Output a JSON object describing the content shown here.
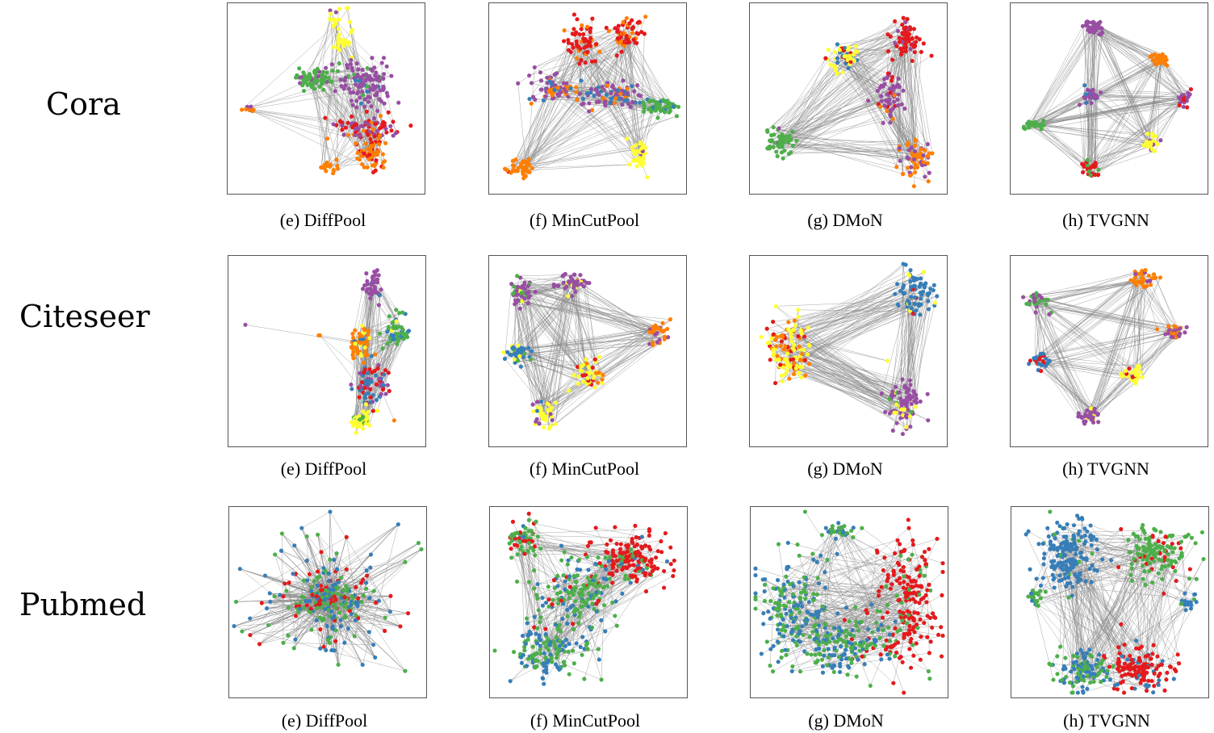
{
  "colors": {
    "edge": "#888888",
    "red": "#e41a1c",
    "blue": "#377eb8",
    "green": "#4daf4a",
    "purple": "#984ea3",
    "orange": "#ff7f00",
    "yellow": "#ffff33"
  },
  "rows": [
    {
      "label": "Cora",
      "panels": [
        {
          "caption": "(e) DiffPool"
        },
        {
          "caption": "(f) MinCutPool"
        },
        {
          "caption": "(g) DMoN"
        },
        {
          "caption": "(h) TVGNN"
        }
      ]
    },
    {
      "label": "Citeseer",
      "panels": [
        {
          "caption": "(e) DiffPool"
        },
        {
          "caption": "(f) MinCutPool"
        },
        {
          "caption": "(g) DMoN"
        },
        {
          "caption": "(h) TVGNN"
        }
      ]
    },
    {
      "label": "Pubmed",
      "panels": [
        {
          "caption": "(e) DiffPool"
        },
        {
          "caption": "(f) MinCutPool"
        },
        {
          "caption": "(g) DMoN"
        },
        {
          "caption": "(h) TVGNN"
        }
      ]
    }
  ]
}
